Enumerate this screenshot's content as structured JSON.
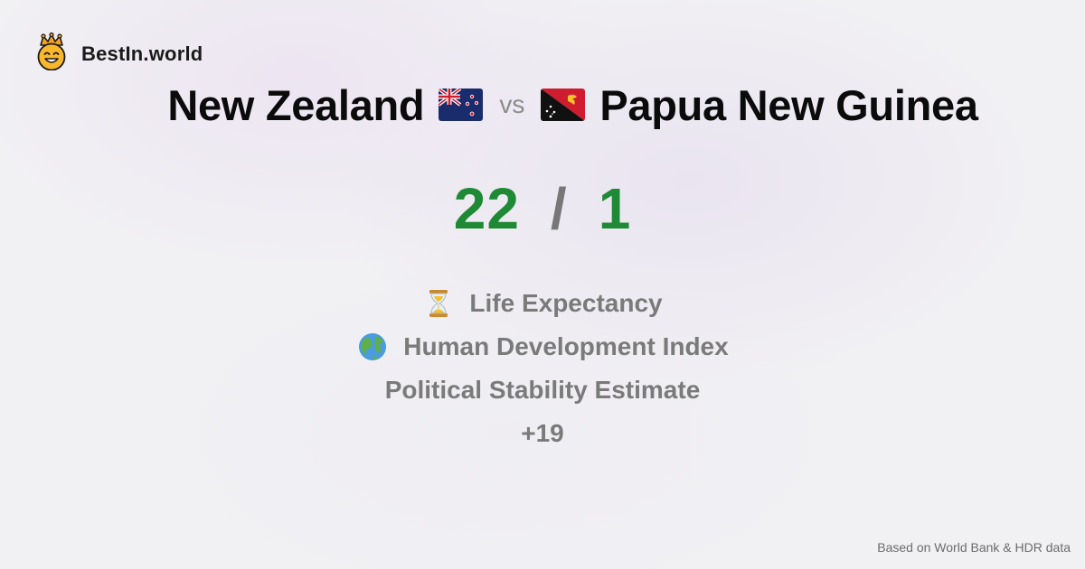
{
  "brand": {
    "name": "BestIn.world",
    "icon": "crown-smiley-icon"
  },
  "comparison": {
    "left": {
      "country": "New Zealand",
      "flag": "new-zealand-flag-icon"
    },
    "vs": "vs",
    "right": {
      "country": "Papua New Guinea",
      "flag": "papua-new-guinea-flag-icon"
    }
  },
  "score": {
    "left": "22",
    "separator": "/",
    "right": "1",
    "color": "#1f8a36"
  },
  "metrics": [
    {
      "icon": "hourglass-icon",
      "label": "Life Expectancy"
    },
    {
      "icon": "globe-icon",
      "label": "Human Development Index"
    },
    {
      "icon": "",
      "label": "Political Stability Estimate"
    },
    {
      "icon": "",
      "label": "+19"
    }
  ],
  "footer": {
    "source": "Based on World Bank & HDR data"
  }
}
